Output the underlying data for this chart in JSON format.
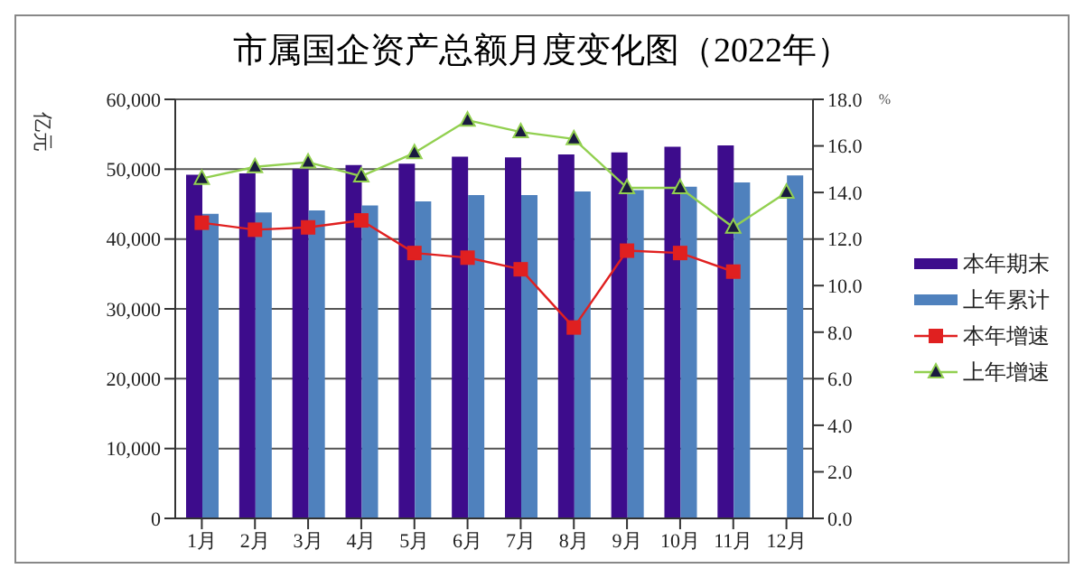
{
  "chart_data": {
    "type": "bar",
    "title": "市属国企资产总额月度变化图（2022年）",
    "ylabel": "亿元",
    "y2label": "%",
    "categories": [
      "1月",
      "2月",
      "3月",
      "4月",
      "5月",
      "6月",
      "7月",
      "8月",
      "9月",
      "10月",
      "11月",
      "12月"
    ],
    "series": [
      {
        "name": "本年期末",
        "color": "#3d0c8c",
        "values": [
          49200,
          49400,
          50000,
          50600,
          50800,
          51800,
          51700,
          52100,
          52400,
          53200,
          53400,
          null
        ]
      },
      {
        "name": "上年累计",
        "color": "#4f81bd",
        "values": [
          43600,
          43800,
          44100,
          44800,
          45400,
          46300,
          46300,
          46800,
          47000,
          47500,
          48100,
          49100
        ]
      },
      {
        "name": "本年增速",
        "type": "line",
        "axis": "y2",
        "marker": "square",
        "color": "#e02020",
        "values": [
          12.7,
          12.4,
          12.5,
          12.8,
          11.4,
          11.2,
          10.7,
          8.2,
          11.5,
          11.4,
          10.6,
          null
        ]
      },
      {
        "name": "上年增速",
        "type": "line",
        "axis": "y2",
        "marker": "triangle",
        "color": "#92d050",
        "values": [
          14.6,
          15.1,
          15.3,
          14.7,
          15.7,
          17.1,
          16.6,
          16.3,
          14.2,
          14.2,
          12.5,
          14.0
        ]
      }
    ],
    "ylim": [
      0,
      60000
    ],
    "yticks": [
      {
        "value": 0,
        "label": "0"
      },
      {
        "value": 10000,
        "label": "10,000"
      },
      {
        "value": 20000,
        "label": "20,000"
      },
      {
        "value": 30000,
        "label": "30,000"
      },
      {
        "value": 40000,
        "label": "40,000"
      },
      {
        "value": 50000,
        "label": "50,000"
      },
      {
        "value": 60000,
        "label": "60,000"
      }
    ],
    "y2lim": [
      0,
      18
    ],
    "y2ticks": [
      {
        "value": 0,
        "label": "0.0"
      },
      {
        "value": 2,
        "label": "2.0"
      },
      {
        "value": 4,
        "label": "4.0"
      },
      {
        "value": 6,
        "label": "6.0"
      },
      {
        "value": 8,
        "label": "8.0"
      },
      {
        "value": 10,
        "label": "10.0"
      },
      {
        "value": 12,
        "label": "12.0"
      },
      {
        "value": 14,
        "label": "14.0"
      },
      {
        "value": 16,
        "label": "16.0"
      },
      {
        "value": 18,
        "label": "18.0"
      }
    ],
    "grid": "y",
    "legend": "right"
  }
}
